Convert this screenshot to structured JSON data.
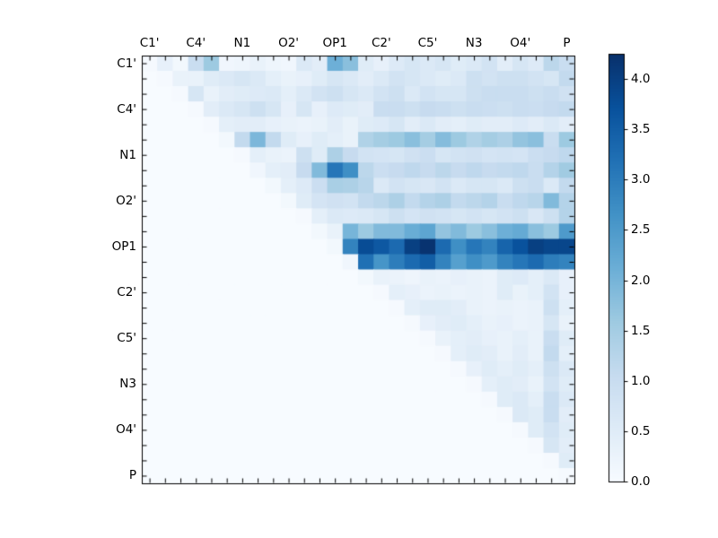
{
  "figure": {
    "background": "#ffffff"
  },
  "chart_data": {
    "type": "heatmap",
    "title": "",
    "xlabel": "",
    "ylabel": "",
    "n": 28,
    "axis_tick_labels": [
      "C1'",
      "C4'",
      "N1",
      "O2'",
      "OP1",
      "C2'",
      "C5'",
      "N3",
      "O4'",
      "P"
    ],
    "label_cell_indices": [
      0,
      3,
      6,
      9,
      12,
      15,
      18,
      21,
      24,
      27
    ],
    "orientation": "upper-triangular",
    "grid": false,
    "colormap": "Blues",
    "colormap_anchors": [
      "#f7fbff",
      "#deebf7",
      "#c6dbef",
      "#9ecae1",
      "#6baed6",
      "#4292c6",
      "#2171b5",
      "#08519c",
      "#08306b"
    ],
    "vmin": 0.0,
    "vmax": 4.25,
    "colorbar_position": "right",
    "colorbar_tick_values": [
      0.0,
      0.5,
      1.0,
      1.5,
      2.0,
      2.5,
      3.0,
      3.5,
      4.0
    ],
    "colorbar_tick_labels": [
      "0.0",
      "0.5",
      "1.0",
      "1.5",
      "2.0",
      "2.5",
      "3.0",
      "3.5",
      "4.0"
    ],
    "matrix": [
      [
        0.05,
        0.35,
        0.1,
        1.0,
        1.6,
        0.15,
        0.2,
        0.3,
        0.2,
        0.15,
        0.6,
        0.45,
        2.1,
        1.8,
        0.5,
        0.35,
        0.55,
        0.7,
        0.6,
        0.7,
        0.5,
        0.6,
        0.8,
        0.45,
        0.7,
        0.55,
        1.2,
        1.0
      ],
      [
        0,
        0.05,
        0.3,
        0.3,
        0.5,
        0.6,
        0.7,
        0.6,
        0.4,
        0.3,
        0.35,
        0.5,
        0.7,
        0.6,
        0.45,
        0.6,
        0.8,
        0.7,
        0.6,
        0.5,
        0.6,
        0.9,
        0.8,
        0.9,
        0.9,
        0.8,
        0.7,
        1.1
      ],
      [
        0,
        0,
        0.05,
        0.7,
        0.3,
        0.45,
        0.5,
        0.55,
        0.6,
        0.4,
        0.6,
        0.8,
        0.9,
        0.7,
        0.6,
        0.8,
        0.9,
        0.6,
        0.8,
        0.7,
        0.7,
        0.9,
        1.0,
        1.0,
        1.0,
        0.9,
        1.0,
        0.85
      ],
      [
        0,
        0,
        0,
        0.05,
        0.45,
        0.6,
        0.7,
        0.9,
        0.7,
        0.35,
        0.7,
        0.35,
        0.55,
        0.5,
        0.45,
        1.0,
        1.0,
        0.9,
        1.05,
        1.0,
        0.9,
        1.0,
        0.95,
        0.9,
        1.0,
        0.95,
        1.05,
        1.1
      ],
      [
        0,
        0,
        0,
        0,
        0.05,
        0.4,
        0.45,
        0.45,
        0.35,
        0.3,
        0.25,
        0.3,
        0.45,
        0.3,
        0.5,
        0.55,
        0.7,
        0.45,
        0.6,
        0.45,
        0.4,
        0.5,
        0.45,
        0.45,
        0.55,
        0.45,
        0.6,
        0.45
      ],
      [
        0,
        0,
        0,
        0,
        0,
        0.1,
        1.1,
        1.95,
        1.1,
        0.5,
        0.35,
        0.5,
        0.4,
        0.3,
        1.35,
        1.5,
        1.6,
        1.8,
        1.5,
        1.85,
        1.6,
        1.35,
        1.5,
        1.4,
        1.7,
        1.8,
        1.0,
        1.6
      ],
      [
        0,
        0,
        0,
        0,
        0,
        0,
        0.05,
        0.4,
        0.3,
        0.25,
        0.9,
        0.5,
        1.4,
        1.05,
        0.8,
        0.75,
        0.7,
        0.85,
        0.95,
        0.7,
        0.8,
        0.85,
        0.75,
        0.8,
        0.75,
        0.95,
        1.05,
        1.15
      ],
      [
        0,
        0,
        0,
        0,
        0,
        0,
        0,
        0.15,
        0.4,
        0.45,
        1.05,
        1.9,
        3.1,
        2.7,
        1.2,
        0.95,
        1.05,
        1.15,
        1.05,
        1.2,
        1.05,
        1.15,
        1.05,
        1.1,
        1.15,
        1.0,
        1.3,
        1.55
      ],
      [
        0,
        0,
        0,
        0,
        0,
        0,
        0,
        0,
        0.1,
        0.4,
        0.55,
        0.95,
        1.45,
        1.4,
        1.25,
        0.6,
        0.8,
        0.7,
        0.65,
        0.8,
        0.6,
        0.7,
        0.7,
        0.6,
        0.9,
        1.0,
        0.6,
        1.1
      ],
      [
        0,
        0,
        0,
        0,
        0,
        0,
        0,
        0,
        0,
        0.1,
        0.5,
        0.75,
        0.85,
        0.8,
        1.1,
        1.2,
        1.4,
        1.1,
        1.3,
        1.4,
        1.1,
        1.2,
        1.3,
        1.0,
        1.15,
        1.25,
        1.9,
        1.3
      ],
      [
        0,
        0,
        0,
        0,
        0,
        0,
        0,
        0,
        0,
        0,
        0.05,
        0.4,
        0.6,
        0.55,
        0.6,
        0.7,
        0.9,
        0.75,
        0.85,
        0.8,
        0.7,
        0.8,
        0.7,
        0.8,
        0.9,
        0.65,
        0.9,
        1.3
      ],
      [
        0,
        0,
        0,
        0,
        0,
        0,
        0,
        0,
        0,
        0,
        0,
        0.1,
        0.3,
        2.0,
        1.6,
        1.9,
        1.9,
        2.15,
        2.3,
        1.7,
        1.9,
        1.6,
        1.8,
        2.1,
        2.2,
        1.8,
        1.6,
        2.5
      ],
      [
        0,
        0,
        0,
        0,
        0,
        0,
        0,
        0,
        0,
        0,
        0,
        0,
        0.1,
        2.9,
        3.8,
        3.6,
        3.3,
        4.0,
        4.2,
        3.3,
        2.7,
        3.1,
        2.9,
        3.4,
        3.7,
        4.0,
        3.9,
        3.9
      ],
      [
        0,
        0,
        0,
        0,
        0,
        0,
        0,
        0,
        0,
        0,
        0,
        0,
        0,
        0.15,
        3.2,
        2.6,
        3.0,
        3.3,
        3.5,
        2.9,
        2.4,
        2.7,
        2.5,
        2.9,
        3.1,
        3.3,
        3.0,
        2.9
      ],
      [
        0,
        0,
        0,
        0,
        0,
        0,
        0,
        0,
        0,
        0,
        0,
        0,
        0,
        0,
        0.1,
        0.3,
        0.25,
        0.2,
        0.3,
        0.25,
        0.35,
        0.3,
        0.25,
        0.5,
        0.55,
        0.4,
        0.6,
        0.35
      ],
      [
        0,
        0,
        0,
        0,
        0,
        0,
        0,
        0,
        0,
        0,
        0,
        0,
        0,
        0,
        0,
        0.05,
        0.4,
        0.35,
        0.25,
        0.3,
        0.25,
        0.3,
        0.25,
        0.5,
        0.3,
        0.4,
        0.8,
        0.35
      ],
      [
        0,
        0,
        0,
        0,
        0,
        0,
        0,
        0,
        0,
        0,
        0,
        0,
        0,
        0,
        0,
        0,
        0.05,
        0.4,
        0.5,
        0.5,
        0.45,
        0.3,
        0.25,
        0.3,
        0.25,
        0.3,
        0.9,
        0.4
      ],
      [
        0,
        0,
        0,
        0,
        0,
        0,
        0,
        0,
        0,
        0,
        0,
        0,
        0,
        0,
        0,
        0,
        0,
        0.05,
        0.35,
        0.45,
        0.5,
        0.4,
        0.3,
        0.35,
        0.25,
        0.3,
        0.7,
        0.3
      ],
      [
        0,
        0,
        0,
        0,
        0,
        0,
        0,
        0,
        0,
        0,
        0,
        0,
        0,
        0,
        0,
        0,
        0,
        0,
        0.05,
        0.3,
        0.4,
        0.45,
        0.35,
        0.3,
        0.4,
        0.3,
        1.0,
        0.5
      ],
      [
        0,
        0,
        0,
        0,
        0,
        0,
        0,
        0,
        0,
        0,
        0,
        0,
        0,
        0,
        0,
        0,
        0,
        0,
        0,
        0.05,
        0.4,
        0.5,
        0.45,
        0.3,
        0.45,
        0.3,
        1.1,
        0.4
      ],
      [
        0,
        0,
        0,
        0,
        0,
        0,
        0,
        0,
        0,
        0,
        0,
        0,
        0,
        0,
        0,
        0,
        0,
        0,
        0,
        0,
        0.05,
        0.35,
        0.5,
        0.4,
        0.5,
        0.4,
        0.9,
        0.6
      ],
      [
        0,
        0,
        0,
        0,
        0,
        0,
        0,
        0,
        0,
        0,
        0,
        0,
        0,
        0,
        0,
        0,
        0,
        0,
        0,
        0,
        0,
        0.05,
        0.4,
        0.5,
        0.45,
        0.3,
        0.8,
        0.5
      ],
      [
        0,
        0,
        0,
        0,
        0,
        0,
        0,
        0,
        0,
        0,
        0,
        0,
        0,
        0,
        0,
        0,
        0,
        0,
        0,
        0,
        0,
        0,
        0.05,
        0.5,
        0.6,
        0.4,
        1.0,
        0.6
      ],
      [
        0,
        0,
        0,
        0,
        0,
        0,
        0,
        0,
        0,
        0,
        0,
        0,
        0,
        0,
        0,
        0,
        0,
        0,
        0,
        0,
        0,
        0,
        0,
        0.05,
        0.6,
        0.5,
        1.0,
        0.45
      ],
      [
        0,
        0,
        0,
        0,
        0,
        0,
        0,
        0,
        0,
        0,
        0,
        0,
        0,
        0,
        0,
        0,
        0,
        0,
        0,
        0,
        0,
        0,
        0,
        0,
        0.05,
        0.5,
        0.8,
        0.5
      ],
      [
        0,
        0,
        0,
        0,
        0,
        0,
        0,
        0,
        0,
        0,
        0,
        0,
        0,
        0,
        0,
        0,
        0,
        0,
        0,
        0,
        0,
        0,
        0,
        0,
        0,
        0.05,
        0.7,
        0.45
      ],
      [
        0,
        0,
        0,
        0,
        0,
        0,
        0,
        0,
        0,
        0,
        0,
        0,
        0,
        0,
        0,
        0,
        0,
        0,
        0,
        0,
        0,
        0,
        0,
        0,
        0,
        0,
        0.05,
        0.5
      ],
      [
        0,
        0,
        0,
        0,
        0,
        0,
        0,
        0,
        0,
        0,
        0,
        0,
        0,
        0,
        0,
        0,
        0,
        0,
        0,
        0,
        0,
        0,
        0,
        0,
        0,
        0,
        0,
        0.05
      ]
    ]
  },
  "colors": {
    "axis": "#000000",
    "text": "#000000",
    "background": "#ffffff"
  }
}
